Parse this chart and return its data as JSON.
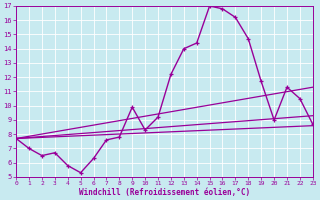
{
  "xlabel": "Windchill (Refroidissement éolien,°C)",
  "xlim": [
    0,
    23
  ],
  "ylim": [
    5,
    17
  ],
  "xticks": [
    0,
    1,
    2,
    3,
    4,
    5,
    6,
    7,
    8,
    9,
    10,
    11,
    12,
    13,
    14,
    15,
    16,
    17,
    18,
    19,
    20,
    21,
    22,
    23
  ],
  "yticks": [
    5,
    6,
    7,
    8,
    9,
    10,
    11,
    12,
    13,
    14,
    15,
    16,
    17
  ],
  "bg_color": "#c8eaf0",
  "line_color": "#990099",
  "grid_color": "#b8d8e0",
  "curve_x": [
    0,
    1,
    2,
    3,
    4,
    5,
    6,
    7,
    8,
    9,
    10,
    11,
    12,
    13,
    14,
    15,
    16,
    17,
    18,
    19,
    20,
    21,
    22,
    23
  ],
  "curve_y": [
    7.7,
    7.0,
    6.5,
    6.7,
    5.8,
    5.3,
    6.3,
    7.6,
    7.8,
    9.9,
    8.3,
    9.2,
    12.2,
    14.0,
    14.4,
    17.0,
    16.8,
    16.2,
    14.7,
    11.7,
    9.0,
    11.3,
    10.5,
    8.7
  ],
  "trend1_x": [
    0,
    23
  ],
  "trend1_y": [
    7.7,
    8.6
  ],
  "trend2_x": [
    0,
    23
  ],
  "trend2_y": [
    7.7,
    9.3
  ],
  "trend3_x": [
    0,
    23
  ],
  "trend3_y": [
    7.7,
    11.3
  ]
}
